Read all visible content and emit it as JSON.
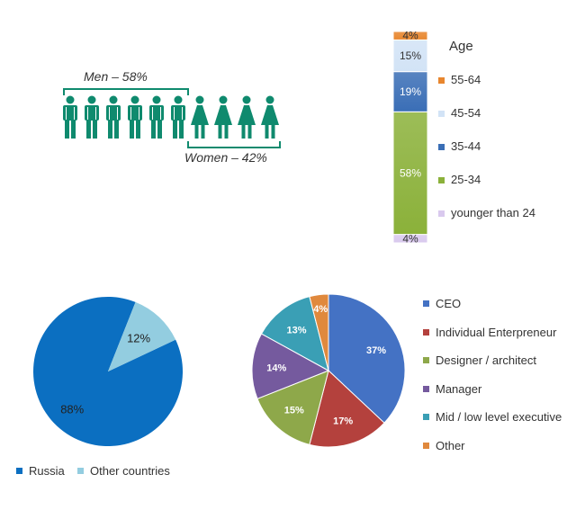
{
  "gender": {
    "men_label": "Men – 58%",
    "women_label": "Women – 42%",
    "men_icons": 6,
    "women_icons": 4,
    "color": "#0f8a6e"
  },
  "chart_data": [
    {
      "type": "bar",
      "stacked": true,
      "title": "Age",
      "categories": [
        ""
      ],
      "series": [
        {
          "name": "younger than 24",
          "values": [
            4
          ],
          "label": "4%",
          "color": "#d9c9ee"
        },
        {
          "name": "25-34",
          "values": [
            58
          ],
          "label": "58%",
          "color": "#8bb13a"
        },
        {
          "name": "35-44",
          "values": [
            19
          ],
          "label": "19%",
          "color": "#3a6eb6"
        },
        {
          "name": "45-54",
          "values": [
            15
          ],
          "label": "15%",
          "color": "#d2e3f6"
        },
        {
          "name": "55-64",
          "values": [
            4
          ],
          "label": "4%",
          "color": "#e8862e"
        }
      ],
      "legend_order": [
        "55-64",
        "45-54",
        "35-44",
        "25-34",
        "younger than 24"
      ],
      "legend_position": "right"
    },
    {
      "type": "pie",
      "slices": [
        {
          "name": "Russia",
          "value": 88,
          "label": "88%",
          "color": "#0b6fc1"
        },
        {
          "name": "Other countries",
          "value": 12,
          "label": "12%",
          "color": "#93cde0"
        }
      ],
      "legend_position": "bottom"
    },
    {
      "type": "pie",
      "slices": [
        {
          "name": "CEO",
          "value": 37,
          "label": "37%",
          "color": "#4472c4"
        },
        {
          "name": "Individual Enterpreneur",
          "value": 17,
          "label": "17%",
          "color": "#b4413d"
        },
        {
          "name": "Designer / architect",
          "value": 15,
          "label": "15%",
          "color": "#8ea84a"
        },
        {
          "name": "Manager",
          "value": 14,
          "label": "14%",
          "color": "#755a9e"
        },
        {
          "name": "Mid / low level executive",
          "value": 13,
          "label": "13%",
          "color": "#3a9fb5"
        },
        {
          "name": "Other",
          "value": 4,
          "label": "4%",
          "color": "#e0893d"
        }
      ],
      "legend_position": "right"
    }
  ]
}
